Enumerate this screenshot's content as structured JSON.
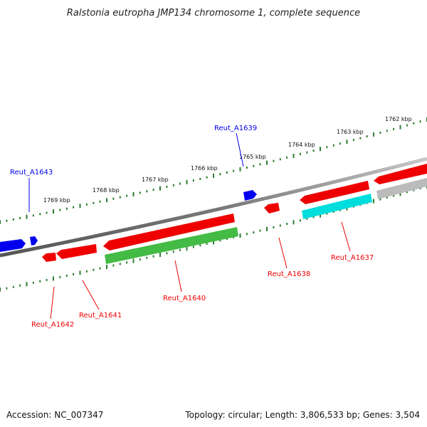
{
  "title": "Ralstonia eutropha JMP134 chromosome 1, complete sequence",
  "accession": "Accession: NC_007347",
  "topology": "Topology: circular; Length: 3,806,533 bp; Genes: 3,504",
  "colors": {
    "backbone": "#808080",
    "forward_gene": "#0000ee",
    "reverse_gene": "#ee0000",
    "rna_gene": "#00dddd",
    "other_gene": "#44bb44",
    "pseudo_gene": "#bbbbbb",
    "tick": "#2e7d32"
  },
  "ticks": [
    {
      "label": "1769 kbp"
    },
    {
      "label": "1768 kbp"
    },
    {
      "label": "1767 kbp"
    },
    {
      "label": "1766 kbp"
    },
    {
      "label": "1765 kbp"
    },
    {
      "label": "1764 kbp"
    },
    {
      "label": "1763 kbp"
    },
    {
      "label": "1762 kbp"
    }
  ],
  "genes": [
    {
      "name": "Reut_A1643",
      "strand": "forward"
    },
    {
      "name": "Reut_A1639",
      "strand": "forward"
    },
    {
      "name": "Reut_A1642",
      "strand": "reverse"
    },
    {
      "name": "Reut_A1641",
      "strand": "reverse"
    },
    {
      "name": "Reut_A1640",
      "strand": "reverse"
    },
    {
      "name": "Reut_A1638",
      "strand": "reverse"
    },
    {
      "name": "Reut_A1637",
      "strand": "reverse"
    }
  ]
}
